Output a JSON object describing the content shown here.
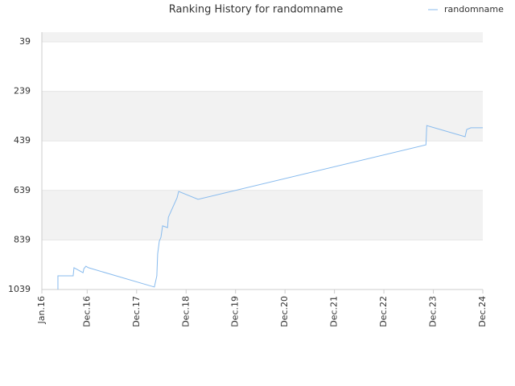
{
  "chart_data": {
    "type": "line",
    "title": "Ranking History for randomname",
    "x": [
      3.9,
      3.9,
      4.3,
      7.6,
      7.8,
      10,
      10.2,
      10.7,
      11.3,
      27.3,
      27.9,
      28.1,
      28.5,
      28.9,
      29.3,
      30.5,
      30.7,
      32.8,
      33.2,
      37.9,
      93.2,
      93.4,
      102.7,
      103.1,
      104.1,
      107
    ],
    "series": [
      {
        "name": "randomname",
        "color": "#88bbee",
        "values": [
          1039,
          984,
          984,
          984,
          951,
          971,
          955,
          945,
          951,
          1029,
          984,
          896,
          844,
          828,
          782,
          789,
          747,
          669,
          643,
          675,
          455,
          377,
          422,
          393,
          386,
          386
        ]
      }
    ],
    "xlim": [
      0,
      107
    ],
    "xticks": [
      {
        "value": 0,
        "label": "Jan.16"
      },
      {
        "value": 11,
        "label": "Dec.16"
      },
      {
        "value": 23,
        "label": "Dec.17"
      },
      {
        "value": 35,
        "label": "Dec.18"
      },
      {
        "value": 47,
        "label": "Dec.19"
      },
      {
        "value": 59,
        "label": "Dec.20"
      },
      {
        "value": 71,
        "label": "Dec.21"
      },
      {
        "value": 83,
        "label": "Dec.22"
      },
      {
        "value": 95,
        "label": "Dec.23"
      },
      {
        "value": 107,
        "label": "Dec.24"
      }
    ],
    "ylim": [
      1039,
      0
    ],
    "yticks": [
      39,
      239,
      439,
      639,
      839,
      1039
    ],
    "grid": true,
    "legend": "top-right"
  }
}
